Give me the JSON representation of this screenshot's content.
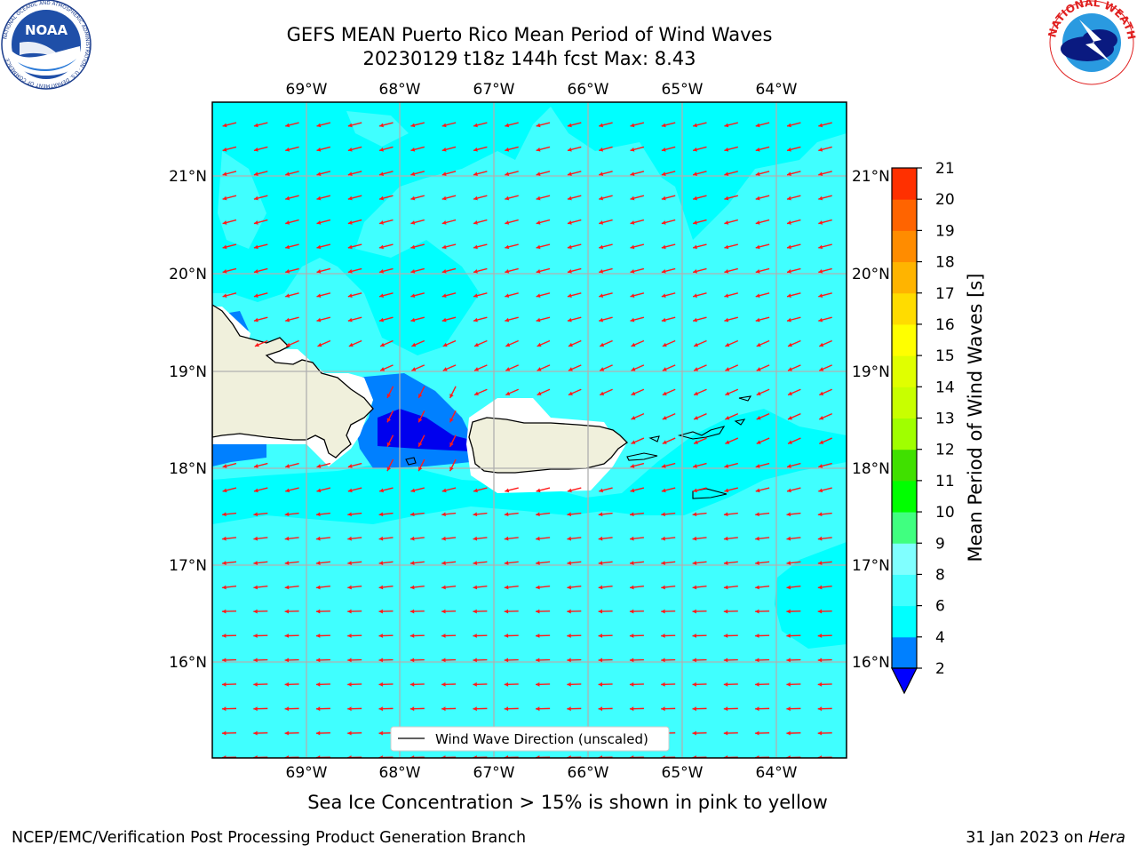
{
  "header": {
    "title_line1": "GEFS MEAN Puerto Rico Mean Period of Wind Waves",
    "title_line2": "20230129 t18z 144h fcst   Max: 8.43"
  },
  "logos": {
    "left": "NOAA",
    "left_ring_text": "NATIONAL OCEANIC AND ATMOSPHERIC ADMINISTRATION · U.S. DEPARTMENT OF COMMERCE",
    "right_ring_text": "NATIONAL WEATHER SERVICE"
  },
  "map": {
    "lon_labels": [
      "69°W",
      "68°W",
      "67°W",
      "66°W",
      "65°W",
      "64°W"
    ],
    "lat_labels": [
      "21°N",
      "20°N",
      "19°N",
      "18°N",
      "17°N",
      "16°N"
    ],
    "legend_label": "Wind Wave Direction (unscaled)",
    "colors": {
      "ocean_6_8": "#40ffff",
      "ocean_4_6": "#00ffff",
      "ocean_2_4": "#0080ff",
      "ocean_lt2": "#0000ee",
      "land": "#f0f0dc",
      "arrow": "#ff1a1a",
      "grid": "#b0b0b0"
    }
  },
  "colorbar": {
    "label": "Mean Period of Wind Waves [s]",
    "ticks": [
      "2",
      "4",
      "6",
      "8",
      "9",
      "10",
      "11",
      "12",
      "13",
      "14",
      "15",
      "16",
      "17",
      "18",
      "19",
      "20",
      "21"
    ],
    "colors": [
      "#0080ff",
      "#00ffff",
      "#40ffff",
      "#80ffff",
      "#40ff80",
      "#00ff00",
      "#40e000",
      "#a0ff00",
      "#c8ff00",
      "#e0ff00",
      "#ffff00",
      "#ffdc00",
      "#ffb400",
      "#ff8c00",
      "#ff6400",
      "#ff3000",
      "#ff0000"
    ],
    "under_color": "#0000ff"
  },
  "caption": "Sea Ice Concentration > 15% is shown in pink to yellow",
  "footer": {
    "left": "NCEP/EMC/Verification Post Processing Product Generation Branch",
    "right_date": "31 Jan 2023 on ",
    "right_host": "Hera"
  }
}
